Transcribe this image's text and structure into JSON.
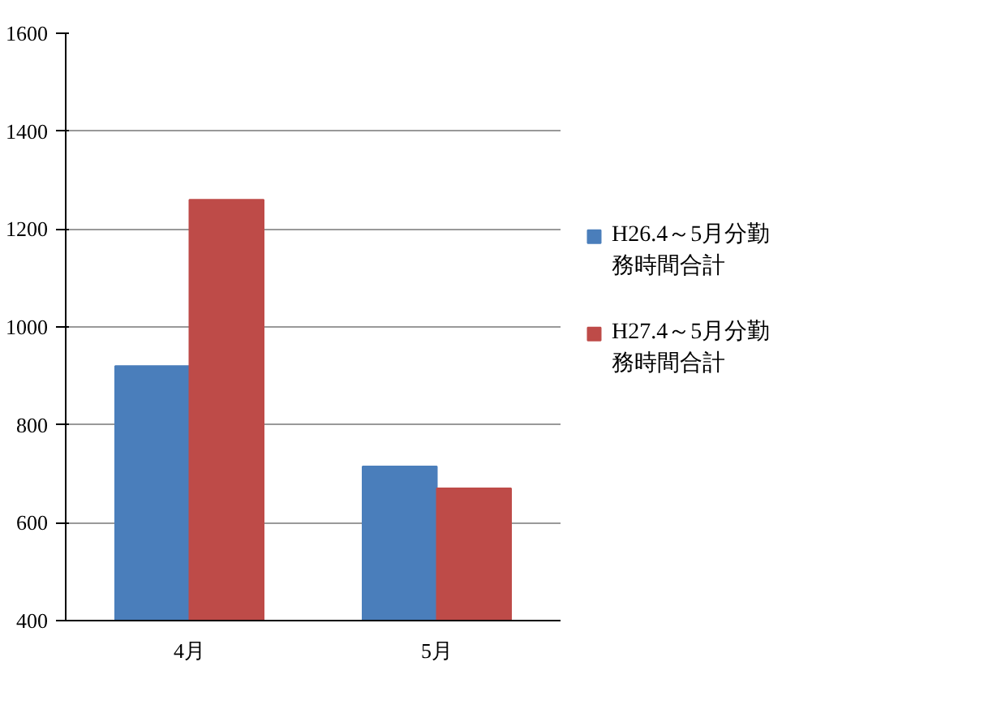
{
  "chart_data": {
    "type": "bar",
    "categories": [
      "4月",
      "5月"
    ],
    "series": [
      {
        "name": "H26.4～5月分勤務時間合計",
        "color": "#4a7ebb",
        "values": [
          920,
          715
        ]
      },
      {
        "name": "H27.4～5月分勤務時間合計",
        "color": "#be4b48",
        "values": [
          1260,
          670
        ]
      }
    ],
    "ylim": [
      400,
      1600
    ],
    "yticks": [
      400,
      600,
      800,
      1000,
      1200,
      1400,
      1600
    ],
    "grid": "y",
    "legend": "right"
  }
}
